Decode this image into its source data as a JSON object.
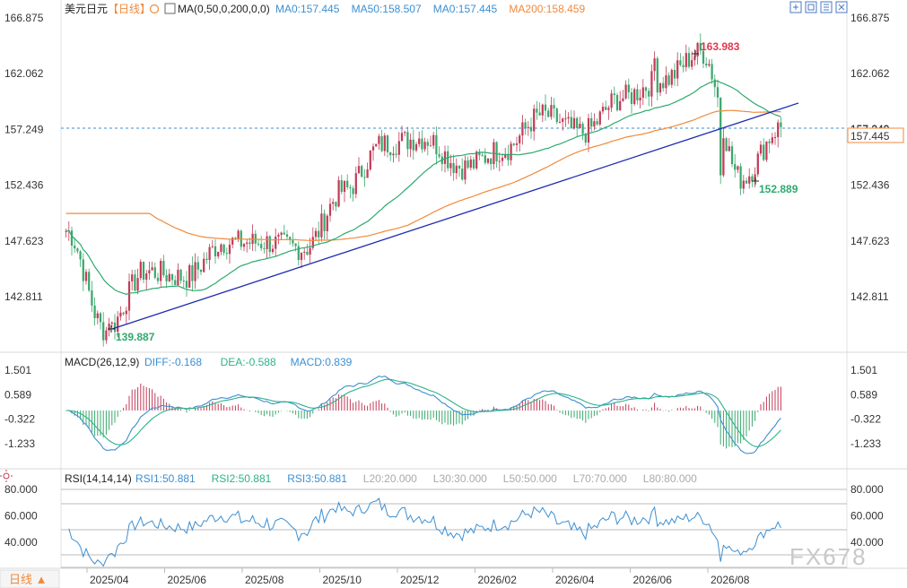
{
  "header": {
    "symbol": "美元日元",
    "period": "【日线】",
    "ma_label": "MA(0,50,0,200,0,0)",
    "ma_values": [
      {
        "text": "MA0:157.445",
        "color": "#3d8fd1"
      },
      {
        "text": "MA50:158.507",
        "color": "#3d8fd1"
      },
      {
        "text": "MA0:157.445",
        "color": "#3d8fd1"
      },
      {
        "text": "MA200:158.459",
        "color": "#f08a3c"
      }
    ]
  },
  "toolbar": {
    "icons": [
      "expand-icon",
      "fit-icon",
      "layout-icon",
      "close-icon"
    ]
  },
  "price_axis": {
    "ticks": [
      "166.875",
      "162.062",
      "157.249",
      "152.436",
      "147.623",
      "142.811"
    ],
    "current_price": "157.445",
    "current_hidden_tick": "157.249"
  },
  "annotations": {
    "high": "163.983",
    "low_2026": "152.889",
    "low_2025": "139.887"
  },
  "macd": {
    "label": "MACD(26,12,9)",
    "values": [
      {
        "text": "DIFF:-0.168",
        "color": "#3d8fd1"
      },
      {
        "text": "DEA:-0.588",
        "color": "#2db28a"
      },
      {
        "text": "MACD:0.839",
        "color": "#3d8fd1"
      }
    ],
    "ticks": [
      "1.501",
      "0.589",
      "-0.322",
      "-1.233"
    ]
  },
  "rsi": {
    "label": "RSI(14,14,14)",
    "values": [
      {
        "text": "RSI1:50.881",
        "color": "#3d8fd1"
      },
      {
        "text": "RSI2:50.881",
        "color": "#2db28a"
      },
      {
        "text": "RSI3:50.881",
        "color": "#3d8fd1"
      },
      {
        "text": "L20:20.000",
        "color": "#aaaaaa"
      },
      {
        "text": "L30:30.000",
        "color": "#aaaaaa"
      },
      {
        "text": "L50:50.000",
        "color": "#aaaaaa"
      },
      {
        "text": "L70:70.000",
        "color": "#aaaaaa"
      },
      {
        "text": "L80:80.000",
        "color": "#aaaaaa"
      }
    ],
    "ticks": [
      "80.000",
      "60.000",
      "40.000"
    ]
  },
  "x_axis": {
    "period_button": "日线 ▲",
    "ticks": [
      "2025/04",
      "2025/06",
      "2025/08",
      "2025/10",
      "2025/12",
      "2026/02",
      "2026/04",
      "2026/06",
      "2026/08"
    ]
  },
  "watermark": "FX678",
  "colors": {
    "up": "#c23b57",
    "down": "#3aa86b",
    "ma50": "#2eaa6e",
    "ma200": "#f08a3c",
    "trend": "#1c2bb0",
    "accent": "#f08a3c"
  },
  "chart_data": {
    "type": "candlestick",
    "title": "美元日元",
    "y_range": [
      138.5,
      167.5
    ],
    "ma50_end": 158.507,
    "ma200_end": 158.459,
    "last_close": 157.445,
    "swing_points": [
      {
        "label": "low",
        "value": 139.887
      },
      {
        "label": "high",
        "value": 163.983
      },
      {
        "label": "low",
        "value": 152.889
      }
    ],
    "close_path_keypoints": [
      [
        "2025/03",
        148.5
      ],
      [
        "2025/04",
        139.9
      ],
      [
        "2025/05",
        145.0
      ],
      [
        "2025/06",
        144.5
      ],
      [
        "2025/07",
        147.5
      ],
      [
        "2025/08",
        147.5
      ],
      [
        "2025/09",
        147.0
      ],
      [
        "2025/10",
        152.0
      ],
      [
        "2025/11",
        156.0
      ],
      [
        "2025/12",
        156.5
      ],
      [
        "2026/01",
        154.0
      ],
      [
        "2026/02",
        155.5
      ],
      [
        "2026/03",
        158.5
      ],
      [
        "2026/04",
        157.0
      ],
      [
        "2026/05",
        160.0
      ],
      [
        "2026/06",
        161.5
      ],
      [
        "2026/07",
        163.9
      ],
      [
        "2026/08",
        153.0
      ],
      [
        "2026/09",
        157.4
      ]
    ],
    "macd_range": [
      -1.8,
      2.0
    ],
    "rsi_range": [
      20,
      85
    ],
    "rsi_last": 50.881
  }
}
